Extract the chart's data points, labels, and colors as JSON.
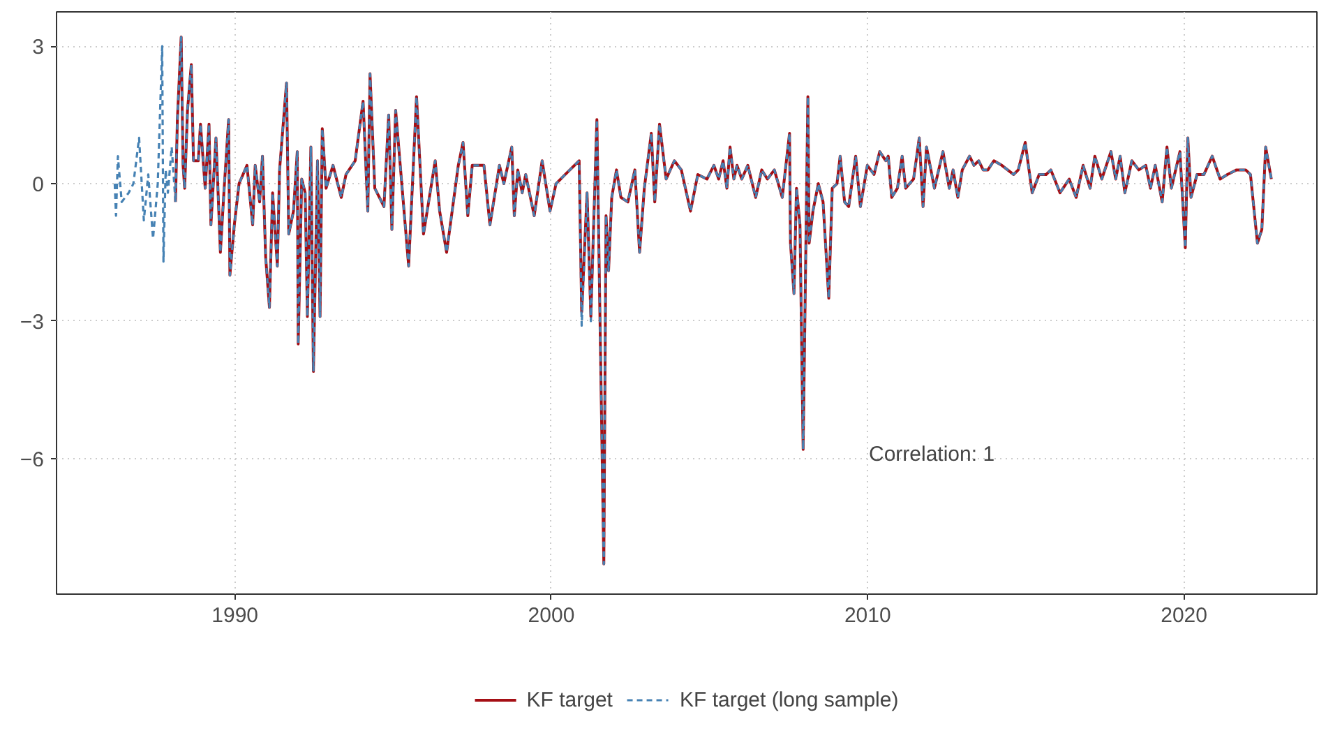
{
  "chart_data": {
    "type": "line",
    "xlim": [
      1984.36,
      2024.2
    ],
    "ylim": [
      -8.96,
      3.75
    ],
    "xticks": [
      1990,
      2000,
      2010,
      2020
    ],
    "yticks": [
      {
        "value": -6,
        "label": "−6"
      },
      {
        "value": -3,
        "label": "−3"
      },
      0,
      3
    ],
    "grid": true,
    "legend": "bottom",
    "annotations": [
      "Correlation:  1"
    ],
    "series": [
      {
        "name": "KF target",
        "color": "#a50f15",
        "line_style": "solid",
        "x": [
          1988.12,
          1988.18,
          1988.3,
          1988.36,
          1988.41,
          1988.5,
          1988.62,
          1988.69,
          1988.84,
          1988.91,
          1989.06,
          1989.18,
          1989.24,
          1989.4,
          1989.54,
          1989.65,
          1989.8,
          1989.84,
          1989.98,
          1990.13,
          1990.38,
          1990.56,
          1990.64,
          1990.78,
          1990.87,
          1990.97,
          1991.09,
          1991.19,
          1991.34,
          1991.41,
          1991.63,
          1991.7,
          1991.85,
          1991.97,
          1992.0,
          1992.11,
          1992.22,
          1992.29,
          1992.4,
          1992.48,
          1992.61,
          1992.69,
          1992.76,
          1992.88,
          1993.1,
          1993.36,
          1993.51,
          1993.8,
          1994.05,
          1994.2,
          1994.27,
          1994.42,
          1994.71,
          1994.86,
          1994.96,
          1995.08,
          1995.49,
          1995.74,
          1995.96,
          1996.33,
          1996.47,
          1996.69,
          1997.06,
          1997.21,
          1997.36,
          1997.5,
          1997.87,
          1998.06,
          1998.36,
          1998.5,
          1998.75,
          1998.83,
          1998.94,
          1999.08,
          1999.19,
          1999.46,
          1999.71,
          1999.96,
          2000.15,
          2000.44,
          2000.88,
          2000.96,
          2001.13,
          2001.25,
          2001.44,
          2001.66,
          2001.73,
          2001.81,
          2001.91,
          2002.06,
          2002.2,
          2002.42,
          2002.64,
          2002.79,
          2002.94,
          2003.16,
          2003.27,
          2003.42,
          2003.63,
          2003.89,
          2004.11,
          2004.4,
          2004.63,
          2004.92,
          2005.14,
          2005.29,
          2005.43,
          2005.55,
          2005.65,
          2005.77,
          2005.87,
          2006.02,
          2006.21,
          2006.46,
          2006.65,
          2006.83,
          2007.05,
          2007.3,
          2007.53,
          2007.56,
          2007.67,
          2007.75,
          2007.86,
          2007.96,
          2008.11,
          2008.15,
          2008.27,
          2008.44,
          2008.59,
          2008.77,
          2008.88,
          2009.03,
          2009.13,
          2009.27,
          2009.4,
          2009.62,
          2009.77,
          2009.99,
          2010.2,
          2010.38,
          2010.57,
          2010.65,
          2010.76,
          2010.94,
          2011.09,
          2011.2,
          2011.45,
          2011.63,
          2011.75,
          2011.86,
          2012.11,
          2012.38,
          2012.58,
          2012.7,
          2012.85,
          2012.99,
          2013.22,
          2013.36,
          2013.51,
          2013.65,
          2013.8,
          2013.99,
          2014.24,
          2014.61,
          2014.76,
          2014.98,
          2015.2,
          2015.42,
          2015.64,
          2015.79,
          2016.08,
          2016.37,
          2016.59,
          2016.81,
          2017.03,
          2017.18,
          2017.4,
          2017.69,
          2017.84,
          2017.98,
          2018.13,
          2018.35,
          2018.57,
          2018.79,
          2018.94,
          2019.09,
          2019.31,
          2019.46,
          2019.6,
          2019.87,
          2020.04,
          2020.12,
          2020.22,
          2020.41,
          2020.63,
          2020.89,
          2021.14,
          2021.37,
          2021.66,
          2021.95,
          2022.1,
          2022.32,
          2022.46,
          2022.58,
          2022.76
        ],
        "values": [
          -0.4,
          1.4,
          3.2,
          0.4,
          -0.1,
          1.6,
          2.6,
          0.5,
          0.5,
          1.3,
          -0.1,
          1.3,
          -0.9,
          1.0,
          -1.5,
          -0.2,
          1.4,
          -2.0,
          -0.9,
          0.0,
          0.4,
          -0.9,
          0.4,
          -0.4,
          0.6,
          -1.6,
          -2.7,
          -0.2,
          -1.8,
          0.3,
          2.2,
          -1.1,
          -0.6,
          0.7,
          -3.5,
          0.1,
          -0.2,
          -2.9,
          0.8,
          -4.1,
          0.5,
          -2.9,
          1.2,
          -0.1,
          0.4,
          -0.3,
          0.2,
          0.5,
          1.8,
          -0.6,
          2.4,
          -0.1,
          -0.5,
          1.5,
          -1.0,
          1.6,
          -1.8,
          1.9,
          -1.1,
          0.5,
          -0.6,
          -1.5,
          0.4,
          0.9,
          -0.7,
          0.4,
          0.4,
          -0.9,
          0.4,
          0.0,
          0.8,
          -0.7,
          0.3,
          -0.2,
          0.2,
          -0.7,
          0.5,
          -0.6,
          0.0,
          0.2,
          0.5,
          -2.8,
          -0.2,
          -2.9,
          1.4,
          -8.3,
          -0.7,
          -1.9,
          -0.3,
          0.3,
          -0.3,
          -0.4,
          0.3,
          -1.5,
          -0.1,
          1.1,
          -0.4,
          1.3,
          0.1,
          0.5,
          0.3,
          -0.6,
          0.2,
          0.1,
          0.4,
          0.1,
          0.5,
          -0.1,
          0.8,
          0.1,
          0.4,
          0.1,
          0.4,
          -0.3,
          0.3,
          0.1,
          0.3,
          -0.3,
          1.1,
          -1.3,
          -2.4,
          -0.1,
          -0.9,
          -5.8,
          1.9,
          -1.3,
          -0.6,
          0.0,
          -0.4,
          -2.5,
          -0.1,
          0.0,
          0.6,
          -0.4,
          -0.5,
          0.6,
          -0.5,
          0.4,
          0.2,
          0.7,
          0.5,
          0.6,
          -0.3,
          -0.1,
          0.6,
          -0.1,
          0.1,
          1.0,
          -0.5,
          0.8,
          -0.1,
          0.7,
          -0.1,
          0.3,
          -0.3,
          0.3,
          0.6,
          0.4,
          0.5,
          0.3,
          0.3,
          0.5,
          0.4,
          0.2,
          0.3,
          0.9,
          -0.2,
          0.2,
          0.2,
          0.3,
          -0.2,
          0.1,
          -0.3,
          0.4,
          -0.1,
          0.6,
          0.1,
          0.7,
          0.1,
          0.6,
          -0.2,
          0.5,
          0.3,
          0.4,
          -0.1,
          0.4,
          -0.4,
          0.8,
          -0.1,
          0.7,
          -1.4,
          1.0,
          -0.3,
          0.2,
          0.2,
          0.6,
          0.1,
          0.2,
          0.3,
          0.3,
          0.2,
          -1.3,
          -1.0,
          0.8,
          0.1
        ]
      },
      {
        "name": "KF target (long sample)",
        "color": "#4682b4",
        "line_style": "dashed",
        "x": [
          1986.2,
          1986.24,
          1986.3,
          1986.42,
          1986.64,
          1986.79,
          1986.97,
          1987.12,
          1987.26,
          1987.41,
          1987.56,
          1987.7,
          1987.74,
          1987.81,
          1987.88,
          1988.0,
          1988.12,
          1988.18,
          1988.3,
          1988.36,
          1988.41,
          1988.5,
          1988.62,
          1988.69,
          1988.84,
          1988.91,
          1989.06,
          1989.18,
          1989.24,
          1989.4,
          1989.54,
          1989.65,
          1989.8,
          1989.84,
          1989.98,
          1990.13,
          1990.38,
          1990.56,
          1990.64,
          1990.78,
          1990.87,
          1990.97,
          1991.09,
          1991.19,
          1991.34,
          1991.41,
          1991.63,
          1991.7,
          1991.85,
          1991.97,
          1992.0,
          1992.11,
          1992.22,
          1992.29,
          1992.4,
          1992.48,
          1992.61,
          1992.69,
          1992.76,
          1992.88,
          1993.1,
          1993.36,
          1993.51,
          1993.8,
          1994.05,
          1994.2,
          1994.27,
          1994.42,
          1994.71,
          1994.86,
          1994.96,
          1995.08,
          1995.49,
          1995.74,
          1995.96,
          1996.33,
          1996.47,
          1996.69,
          1997.06,
          1997.21,
          1997.36,
          1997.5,
          1997.87,
          1998.06,
          1998.36,
          1998.5,
          1998.75,
          1998.83,
          1998.94,
          1999.08,
          1999.19,
          1999.46,
          1999.71,
          1999.96,
          2000.15,
          2000.44,
          2000.88,
          2000.96,
          2001.13,
          2001.25,
          2001.44,
          2001.66,
          2001.73,
          2001.81,
          2001.91,
          2002.06,
          2002.2,
          2002.42,
          2002.64,
          2002.79,
          2002.94,
          2003.16,
          2003.27,
          2003.42,
          2003.63,
          2003.89,
          2004.11,
          2004.4,
          2004.63,
          2004.92,
          2005.14,
          2005.29,
          2005.43,
          2005.55,
          2005.65,
          2005.77,
          2005.87,
          2006.02,
          2006.21,
          2006.46,
          2006.65,
          2006.83,
          2007.05,
          2007.3,
          2007.53,
          2007.56,
          2007.67,
          2007.75,
          2007.86,
          2007.96,
          2008.11,
          2008.15,
          2008.27,
          2008.44,
          2008.59,
          2008.77,
          2008.88,
          2009.03,
          2009.13,
          2009.27,
          2009.4,
          2009.62,
          2009.77,
          2009.99,
          2010.2,
          2010.38,
          2010.57,
          2010.65,
          2010.76,
          2010.94,
          2011.09,
          2011.2,
          2011.45,
          2011.63,
          2011.75,
          2011.86,
          2012.11,
          2012.38,
          2012.58,
          2012.7,
          2012.85,
          2012.99,
          2013.22,
          2013.36,
          2013.51,
          2013.65,
          2013.8,
          2013.99,
          2014.24,
          2014.61,
          2014.76,
          2014.98,
          2015.2,
          2015.42,
          2015.64,
          2015.79,
          2016.08,
          2016.37,
          2016.59,
          2016.81,
          2017.03,
          2017.18,
          2017.4,
          2017.69,
          2017.84,
          2017.98,
          2018.13,
          2018.35,
          2018.57,
          2018.79,
          2018.94,
          2019.09,
          2019.31,
          2019.46,
          2019.6,
          2019.87,
          2020.04,
          2020.12,
          2020.22,
          2020.41,
          2020.63,
          2020.89,
          2021.14,
          2021.37,
          2021.66,
          2021.95,
          2022.1,
          2022.32,
          2022.46,
          2022.58,
          2022.76
        ],
        "values": [
          0.0,
          -0.7,
          0.6,
          -0.4,
          -0.2,
          0.0,
          1.0,
          -0.8,
          0.2,
          -1.2,
          0.0,
          3.0,
          -1.7,
          0.3,
          -0.2,
          0.8,
          -0.4,
          1.4,
          3.2,
          0.4,
          -0.1,
          1.6,
          2.6,
          0.5,
          0.5,
          1.3,
          -0.1,
          1.3,
          -0.9,
          1.0,
          -1.5,
          -0.2,
          1.4,
          -2.0,
          -0.9,
          0.0,
          0.4,
          -0.9,
          0.4,
          -0.4,
          0.6,
          -1.6,
          -2.7,
          -0.2,
          -1.8,
          0.3,
          2.2,
          -1.1,
          -0.6,
          0.7,
          -3.5,
          0.1,
          -0.2,
          -2.9,
          0.8,
          -4.1,
          0.5,
          -2.9,
          1.2,
          -0.1,
          0.4,
          -0.3,
          0.2,
          0.5,
          1.8,
          -0.6,
          2.4,
          -0.1,
          -0.5,
          1.5,
          -1.0,
          1.6,
          -1.8,
          1.9,
          -1.1,
          0.5,
          -0.6,
          -1.5,
          0.4,
          0.9,
          -0.7,
          0.4,
          0.4,
          -0.9,
          0.4,
          0.0,
          0.8,
          -0.7,
          0.3,
          -0.2,
          0.2,
          -0.7,
          0.5,
          -0.6,
          0.0,
          0.2,
          0.5,
          -3.1,
          -0.2,
          -3.0,
          1.4,
          -8.3,
          -0.7,
          -1.9,
          -0.3,
          0.3,
          -0.3,
          -0.4,
          0.3,
          -1.5,
          -0.1,
          1.1,
          -0.4,
          1.3,
          0.1,
          0.5,
          0.3,
          -0.6,
          0.2,
          0.1,
          0.4,
          0.1,
          0.5,
          -0.1,
          0.8,
          0.1,
          0.4,
          0.1,
          0.4,
          -0.3,
          0.3,
          0.1,
          0.3,
          -0.3,
          1.1,
          -1.3,
          -2.4,
          -0.1,
          -0.9,
          -5.8,
          1.9,
          -1.3,
          -0.6,
          0.0,
          -0.4,
          -2.5,
          -0.1,
          0.0,
          0.6,
          -0.4,
          -0.5,
          0.6,
          -0.5,
          0.4,
          0.2,
          0.7,
          0.5,
          0.6,
          -0.3,
          -0.1,
          0.6,
          -0.1,
          0.1,
          1.0,
          -0.5,
          0.8,
          -0.1,
          0.7,
          -0.1,
          0.3,
          -0.3,
          0.3,
          0.6,
          0.4,
          0.5,
          0.3,
          0.3,
          0.5,
          0.4,
          0.2,
          0.3,
          0.9,
          -0.2,
          0.2,
          0.2,
          0.3,
          -0.2,
          0.1,
          -0.3,
          0.4,
          -0.1,
          0.6,
          0.1,
          0.7,
          0.1,
          0.6,
          -0.2,
          0.5,
          0.3,
          0.4,
          -0.1,
          0.4,
          -0.4,
          0.8,
          -0.1,
          0.7,
          -1.4,
          1.0,
          -0.3,
          0.2,
          0.2,
          0.6,
          0.1,
          0.2,
          0.3,
          0.3,
          0.2,
          -1.3,
          -1.0,
          0.8,
          0.1
        ]
      }
    ]
  }
}
